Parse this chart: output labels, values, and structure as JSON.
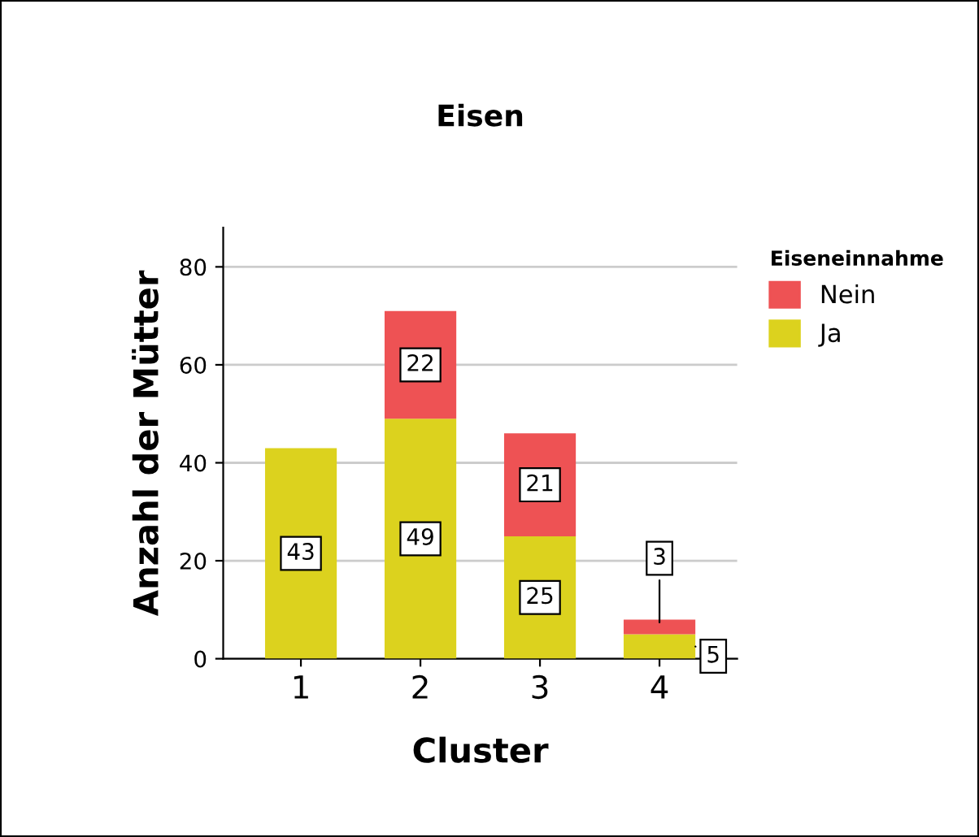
{
  "chart_data": {
    "type": "bar",
    "title": "Eisen",
    "xlabel": "Cluster",
    "ylabel": "Anzahl der Mütter",
    "legend_title": "Eiseneinnahme",
    "categories": [
      "1",
      "2",
      "3",
      "4"
    ],
    "series": [
      {
        "name": "Ja",
        "color": "#dcd21e",
        "values": [
          43,
          49,
          25,
          5
        ]
      },
      {
        "name": "Nein",
        "color": "#ee5254",
        "values": [
          null,
          22,
          21,
          3
        ]
      }
    ],
    "stacked": true,
    "ylim": [
      0,
      88
    ],
    "yticks": [
      0,
      20,
      40,
      60,
      80
    ],
    "grid": "y",
    "legend": "top right",
    "data_labels": true
  }
}
